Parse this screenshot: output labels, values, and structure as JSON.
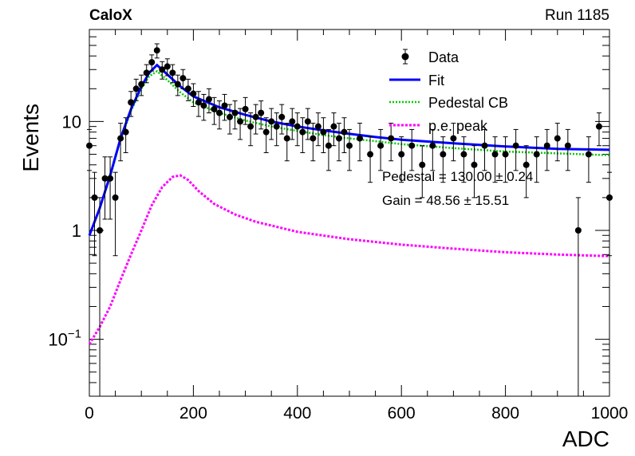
{
  "header": {
    "left_label": "CaloX",
    "right_label": "Run 1185"
  },
  "chart_data": {
    "type": "scatter",
    "title": "",
    "xlabel": "ADC",
    "ylabel": "Events",
    "xlim": [
      0,
      1000
    ],
    "ylim": [
      0.03,
      70
    ],
    "yscale": "log",
    "grid": false,
    "legend_position": "top-right",
    "x_ticks": [
      0,
      200,
      400,
      600,
      800,
      1000
    ],
    "x_tick_labels": [
      "0",
      "200",
      "400",
      "600",
      "800",
      "1000"
    ],
    "y_ticks": [
      0.1,
      1,
      10
    ],
    "y_tick_labels": [
      {
        "base": "10",
        "exp": "−1"
      },
      {
        "base": "1",
        "exp": ""
      },
      {
        "base": "10",
        "exp": ""
      }
    ],
    "legend": [
      {
        "label": "Data",
        "style": "marker",
        "color": "#000000"
      },
      {
        "label": "Fit",
        "style": "line",
        "color": "#0000ff"
      },
      {
        "label": "Pedestal CB",
        "style": "dotted",
        "color": "#00cc00"
      },
      {
        "label": "p.e. peak",
        "style": "dashed",
        "color": "#ff00ff"
      }
    ],
    "annotations": [
      "Pedestal = 130.00 ± 0.24",
      "Gain = 48.56 ± 15.51"
    ],
    "series": [
      {
        "name": "Data",
        "kind": "points_with_errors",
        "color": "#000000",
        "x": [
          0,
          10,
          20,
          30,
          40,
          50,
          60,
          70,
          80,
          90,
          100,
          110,
          120,
          130,
          140,
          150,
          160,
          170,
          180,
          190,
          200,
          210,
          220,
          230,
          240,
          250,
          260,
          270,
          280,
          290,
          300,
          310,
          320,
          330,
          340,
          350,
          360,
          370,
          380,
          390,
          400,
          410,
          420,
          430,
          440,
          450,
          460,
          470,
          480,
          490,
          500,
          520,
          540,
          560,
          580,
          600,
          620,
          640,
          660,
          680,
          700,
          720,
          740,
          760,
          780,
          800,
          820,
          840,
          860,
          880,
          900,
          920,
          940,
          960,
          980,
          1000
        ],
        "y": [
          6,
          2,
          1,
          3,
          3,
          2,
          7,
          8,
          15,
          20,
          22,
          28,
          35,
          45,
          30,
          32,
          28,
          22,
          25,
          20,
          18,
          15,
          14,
          16,
          13,
          12,
          14,
          11,
          12,
          10,
          13,
          9,
          11,
          12,
          8,
          10,
          9,
          11,
          7,
          10,
          9,
          8,
          10,
          7,
          9,
          8,
          6,
          9,
          7,
          8,
          6,
          7,
          5,
          6,
          7,
          5,
          6,
          4,
          6,
          5,
          7,
          5,
          4,
          6,
          5,
          5,
          6,
          4,
          5,
          6,
          7,
          6,
          1,
          5,
          9,
          2
        ]
      },
      {
        "name": "Fit",
        "kind": "line",
        "color": "#0000ff",
        "x": [
          0,
          20,
          40,
          60,
          80,
          100,
          115,
          130,
          150,
          175,
          200,
          250,
          300,
          350,
          400,
          450,
          500,
          550,
          600,
          700,
          800,
          900,
          1000
        ],
        "y": [
          0.9,
          1.6,
          3.2,
          7,
          13,
          21,
          28,
          33,
          27,
          21,
          17,
          13.5,
          11.5,
          10,
          9,
          8.3,
          7.7,
          7.2,
          6.8,
          6.3,
          5.9,
          5.6,
          5.5
        ]
      },
      {
        "name": "Pedestal CB",
        "kind": "line",
        "color": "#00cc00",
        "x": [
          0,
          20,
          40,
          60,
          80,
          100,
          115,
          130,
          150,
          175,
          200,
          250,
          300,
          350,
          400,
          450,
          500,
          550,
          600,
          700,
          800,
          900,
          1000
        ],
        "y": [
          0.9,
          1.6,
          3.1,
          6.8,
          12.5,
          20,
          26,
          29,
          24,
          18.5,
          15,
          12,
          10.2,
          9,
          8.2,
          7.5,
          7,
          6.6,
          6.2,
          5.7,
          5.3,
          5.1,
          4.9
        ]
      },
      {
        "name": "p.e. peak",
        "kind": "line",
        "color": "#ff00ff",
        "x": [
          0,
          20,
          40,
          60,
          80,
          100,
          120,
          140,
          160,
          175,
          190,
          210,
          240,
          280,
          320,
          400,
          500,
          600,
          700,
          800,
          900,
          1000
        ],
        "y": [
          0.09,
          0.13,
          0.2,
          0.35,
          0.6,
          1.0,
          1.7,
          2.5,
          3.1,
          3.2,
          2.9,
          2.3,
          1.75,
          1.4,
          1.2,
          0.97,
          0.83,
          0.74,
          0.68,
          0.63,
          0.6,
          0.58
        ]
      }
    ]
  }
}
